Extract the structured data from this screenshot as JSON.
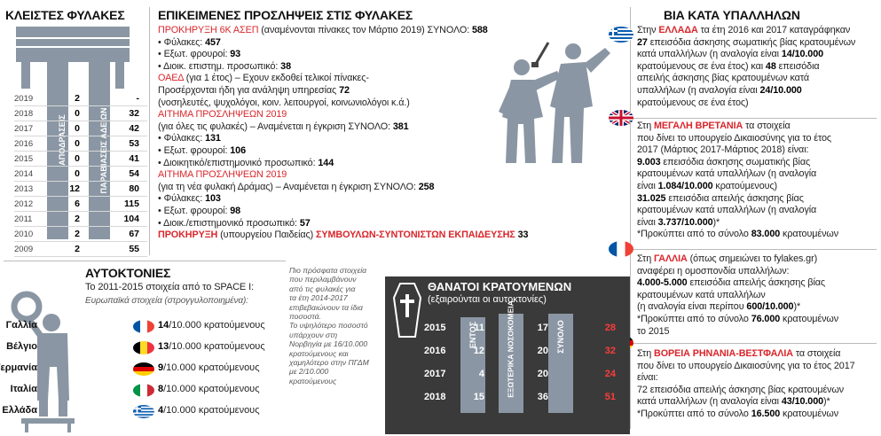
{
  "left_panel": {
    "title": "ΚΛΕΙΣΤΕΣ ΦΥΛΑΚΕΣ",
    "label_a": "ΑΠΟΔΡΑΣΕΙΣ",
    "label_b": "ΠΑΡΑΒΙΑΣΕΙΣ ΑΔΕΙΩΝ",
    "rows": [
      {
        "year": "2019",
        "a": "2",
        "b": "-"
      },
      {
        "year": "2018",
        "a": "0",
        "b": "32"
      },
      {
        "year": "2017",
        "a": "0",
        "b": "42"
      },
      {
        "year": "2016",
        "a": "0",
        "b": "53"
      },
      {
        "year": "2015",
        "a": "0",
        "b": "41"
      },
      {
        "year": "2014",
        "a": "0",
        "b": "54"
      },
      {
        "year": "2013",
        "a": "12",
        "b": "80"
      },
      {
        "year": "2012",
        "a": "6",
        "b": "115"
      },
      {
        "year": "2011",
        "a": "2",
        "b": "104"
      },
      {
        "year": "2010",
        "a": "2",
        "b": "67"
      },
      {
        "year": "2009",
        "a": "2",
        "b": "55"
      }
    ]
  },
  "hiring": {
    "title": "ΕΠΙΚΕΙΜΕΝΕΣ ΠΡΟΣΛΗΨΕΙΣ ΣΤΙΣ ΦΥΛΑΚΕΣ",
    "l1_red": "ΠΡΟΚΗΡΥΞΗ 6Κ ΑΣΕΠ",
    "l1_rest": " (αναμένονται πίνακες τον Μάρτιο 2019) ΣΥΝΟΛΟ: ",
    "l1_num": "588",
    "l2_text": "• Φύλακες: ",
    "l2_num": "457",
    "l3_text": "• Εξωτ. φρουροί: ",
    "l3_num": "93",
    "l4_text": "• Διοικ. επιστημ. προσωπικό: ",
    "l4_num": "38",
    "l5_red": "ΟΑΕΔ",
    "l5_rest": " (για 1 έτος) – Εχουν εκδοθεί τελικοί πίνακες-",
    "l6_text": "Προσέρχονται ήδη για ανάληψη υπηρεσίας ",
    "l6_num": "72",
    "l7_text": "(νοσηλευτές, ψυχολόγοι, κοιν. λειτουργοί, κοινωνιολόγοι κ.ά.)",
    "l8_red": "ΑΙΤΗΜΑ ΠΡΟΣΛΗΨΕΩΝ 2019",
    "l9_text": "(για όλες τις φυλακές) – Αναμένεται η έγκριση ΣΥΝΟΛΟ: ",
    "l9_num": "381",
    "l10_text": "• Φύλακες: ",
    "l10_num": "131",
    "l11_text": "• Εξωτ. φρουροί: ",
    "l11_num": "106",
    "l12_text": "• Διοικητικό/επιστημονικό προσωπικό: ",
    "l12_num": "144",
    "l13_red": "ΑΙΤΗΜΑ ΠΡΟΣΛΗΨΕΩΝ 2019",
    "l14_text": "(για τη νέα φυλακή Δράμας) – Αναμένεται η έγκριση ΣΥΝΟΛΟ: ",
    "l14_num": "258",
    "l15_text": "• Φύλακες: ",
    "l15_num": "103",
    "l16_text": "• Εξωτ. φρουροί: ",
    "l16_num": "98",
    "l17_text": "• Διοικ./επιστημονικό προσωπικό: ",
    "l17_num": "57",
    "l18_red": "ΠΡΟΚΗΡΥΞΗ",
    "l18_mid": " (υπουργείου Παιδείας) ",
    "l18_red2": "ΣΥΜΒΟΥΛΩΝ-ΣΥΝΤΟΝΙΣΤΩΝ ΕΚΠΑΙΔΕΥΣΗΣ",
    "l18_num": " 33"
  },
  "suicides": {
    "title": "ΑΥΤΟΚΤΟΝΙΕΣ",
    "subtitle": "Το 2011-2015 στοιχεία από το SPACE I:",
    "note": "Ευρωπαϊκά στοιχεία (στρογγυλοποιημένα):",
    "unit": "/10.000 κρατούμενους",
    "rows": [
      {
        "country": "Γαλλία",
        "value": "14"
      },
      {
        "country": "Βέλγιο",
        "value": "13"
      },
      {
        "country": "Γερμανία",
        "value": "9"
      },
      {
        "country": "Ιταλία",
        "value": "8"
      },
      {
        "country": "Ελλάδα",
        "value": "4"
      }
    ]
  },
  "side_note": {
    "lines": [
      "Πιο πρόσφατα στοιχεία",
      "που περιλαμβάνουν",
      "από τις φυλακές για",
      "τα έτη 2014-2017",
      "επιβεβαιώνουν τα ίδια",
      "ποσοστά.",
      "Το υψηλότερο ποσοστό",
      "υπάρχουν στη",
      "Νορβηγία με 16/10.000",
      "κρατούμενους και",
      "χαμηλότερο στην ΠΓΔΜ",
      "με 2/10.000",
      "κρατούμενους"
    ]
  },
  "deaths": {
    "title": "ΘΑΝΑΤΟΙ ΚΡΑΤΟΥΜΕΝΩΝ",
    "subtitle": "(εξαιρούνται οι αυτοκτονίες)",
    "col_a": "ΕΝΤΟΣ",
    "col_b": "ΕΞΩΤΕΡΙΚΑ ΝΟΣΟΚΟΜΕΙΑ",
    "col_c": "ΣΥΝΟΛΟ",
    "rows": [
      {
        "year": "2015",
        "a": "11",
        "b": "17",
        "c": "28"
      },
      {
        "year": "2016",
        "a": "12",
        "b": "20",
        "c": "32"
      },
      {
        "year": "2017",
        "a": "4",
        "b": "20",
        "c": "24"
      },
      {
        "year": "2018",
        "a": "15",
        "b": "36",
        "c": "51"
      }
    ]
  },
  "violence": {
    "title": "ΒΙΑ ΚΑΤΑ ΥΠΑΛΛΗΛΩΝ",
    "gr": {
      "l1a": "Στην ",
      "l1b": "ΕΛΛΑΔΑ",
      "l1c": " τα έτη 2016 και 2017 καταγράφηκαν",
      "l2a": "27",
      "l2b": " επεισόδια άσκησης σωματικής βίας κρατουμένων",
      "l3a": "κατά υπαλλήλων (η αναλογία είναι ",
      "l3b": "14/10.000",
      "l4a": "κρατούμενους σε ένα έτος) και ",
      "l4b": "48",
      "l4c": " επεισόδια",
      "l5": "απειλής άσκησης βίας κρατουμένων κατά",
      "l6a": "υπαλλήλων (η αναλογία είναι ",
      "l6b": "24/10.000",
      "l7": "κρατούμενους σε ένα έτος)"
    },
    "uk": {
      "l1a": "Στη ",
      "l1b": "ΜΕΓΑΛΗ ΒΡΕΤΑΝΙΑ",
      "l1c": " τα στοιχεία",
      "l2": "που δίνει το υπουργείο Δικαιοσύνης για το έτος",
      "l3": "2017 (Μάρτιος 2017-Μάρτιος 2018) είναι:",
      "l4a": "9.003",
      "l4b": " επεισόδια άσκησης σωματικής βίας",
      "l5": "κρατουμένων κατά υπαλλήλων (η αναλογία",
      "l6a": "είναι ",
      "l6b": "1.084/10.000",
      "l6c": " κρατούμενους)",
      "l7a": "31.025",
      "l7b": " επεισόδια απειλής άσκησης βίας",
      "l8": "κρατουμένων κατά υπαλλήλων (η αναλογία",
      "l9a": "είναι ",
      "l9b": "3.737/10.000",
      "l9c": ")*",
      "l10a": "*Προκύπτει από το σύνολο ",
      "l10b": "83.000",
      "l10c": " κρατουμένων"
    },
    "fr": {
      "l1a": "Στη ",
      "l1b": "ΓΑΛΛΙΑ",
      "l1c": " (όπως σημειώνει το fylakes.gr)",
      "l2": "αναφέρει η ομοσπονδία υπαλλήλων:",
      "l3a": "4.000-5.000",
      "l3b": " επεισόδια απειλής άσκησης βίας",
      "l4": "κρατουμένων κατά υπαλλήλων",
      "l5a": "(η αναλογία είναι περίπου ",
      "l5b": "600/10.000",
      "l5c": ")*",
      "l6a": "*Προκύπτει από το σύνολο ",
      "l6b": "76.000",
      "l6c": " κρατουμένων",
      "l7": "το 2015"
    },
    "de": {
      "l1a": "Στη ",
      "l1b": "ΒΟΡΕΙΑ ΡΗΝΑΝΙΑ-ΒΕΣΤΦΑΛΙΑ",
      "l1c": " τα στοιχεία",
      "l2": "που δίνει το υπουργείο Δικαιοσύνης για το έτος 2017",
      "l3": "είναι:",
      "l4": "72 επεισόδια απειλής άσκησης βίας κρατουμένων",
      "l5a": "κατά υπαλλήλων (η αναλογία είναι ",
      "l5b": "43/10.000",
      "l5c": ")*",
      "l6a": "*Προκύπτει από το σύνολο ",
      "l6b": "16.500",
      "l6c": " κρατουμένων"
    }
  }
}
